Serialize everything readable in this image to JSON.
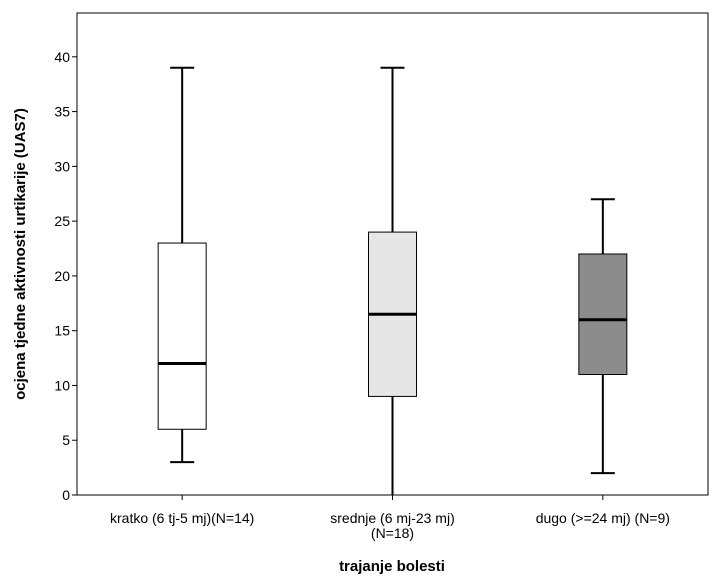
{
  "chart_data": {
    "type": "boxplot",
    "xlabel": "trajanje bolesti",
    "ylabel": "ocjena tjedne aktivnosti urtikarije (UAS7)",
    "ylim": [
      0,
      44
    ],
    "yticks": [
      0,
      5,
      10,
      15,
      20,
      25,
      30,
      35,
      40
    ],
    "grid": false,
    "categories": [
      {
        "label_lines": [
          "kratko (6 tj-5 mj)(N=14)"
        ],
        "min": 3,
        "q1": 6,
        "median": 12,
        "q3": 23,
        "max": 39,
        "fill": "#ffffff"
      },
      {
        "label_lines": [
          "srednje (6 mj-23 mj)",
          "(N=18)"
        ],
        "min": 0,
        "q1": 9,
        "median": 16.5,
        "q3": 24,
        "max": 39,
        "fill": "#e6e6e6"
      },
      {
        "label_lines": [
          "dugo (>=24 mj) (N=9)"
        ],
        "min": 2,
        "q1": 11,
        "median": 16,
        "q3": 22,
        "max": 27,
        "fill": "#8c8c8c"
      }
    ]
  }
}
